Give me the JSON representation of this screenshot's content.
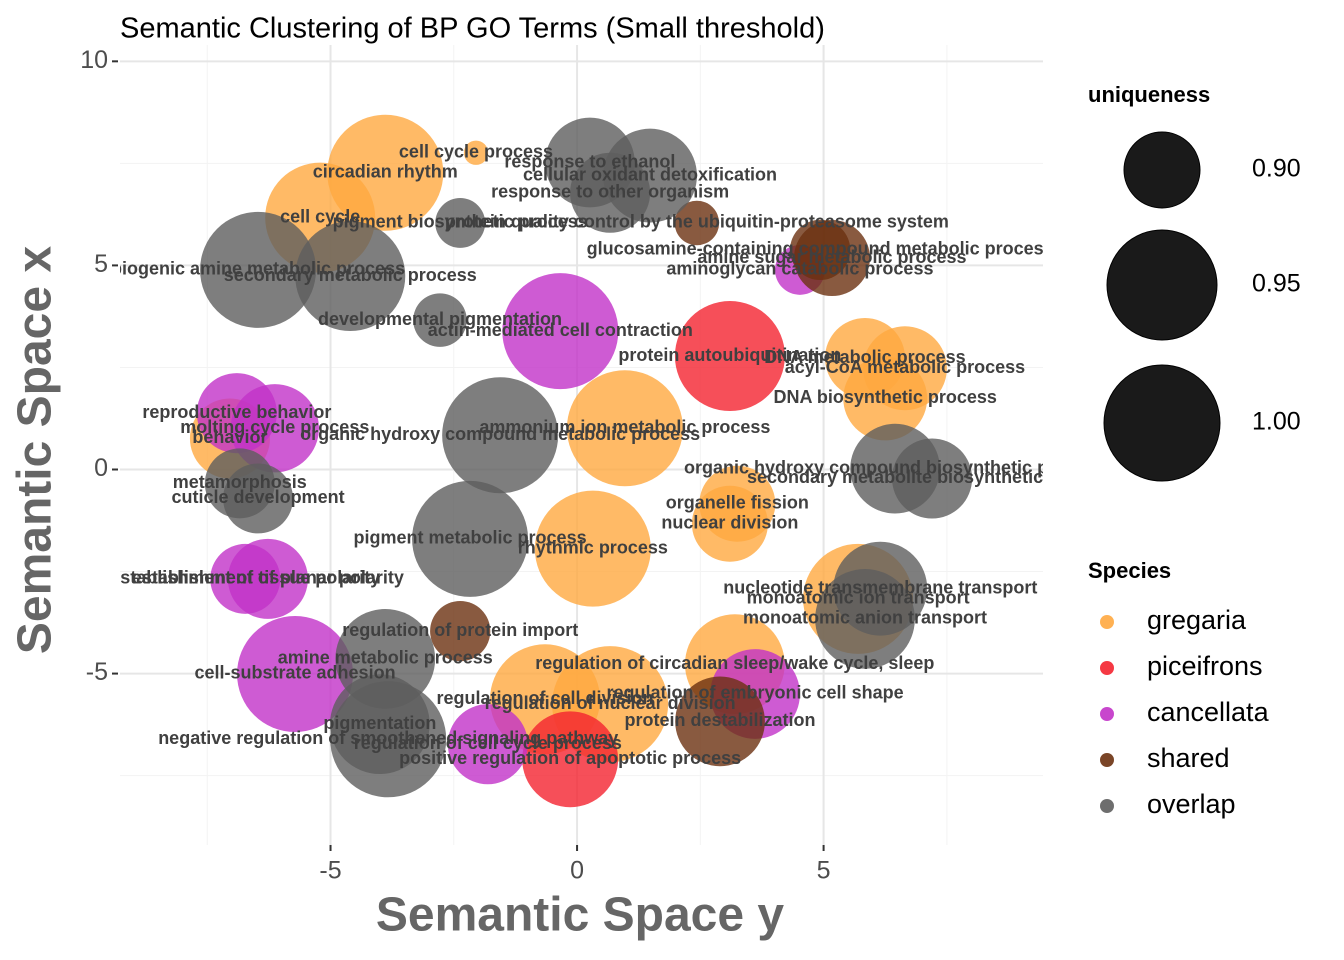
{
  "chart_data": {
    "type": "scatter",
    "title": "Semantic Clustering of BP GO Terms (Small threshold)",
    "x_label": "Semantic Space y",
    "y_label": "Semantic Space x",
    "xlim": [
      -9.27,
      9.45
    ],
    "ylim": [
      -9.2,
      10.4
    ],
    "xticks": [
      -5,
      0,
      5
    ],
    "yticks": [
      -5,
      0,
      5,
      10
    ],
    "grid": true,
    "size_title": "uniqueness",
    "size_ticks": [
      {
        "value": 0.9,
        "label": "0.90"
      },
      {
        "value": 0.95,
        "label": "0.95"
      },
      {
        "value": 1.0,
        "label": "1.00"
      }
    ],
    "color_title": "Species",
    "series": [
      {
        "name": "gregaria",
        "color": "#FFA940",
        "labels": [
          "cell cycle process",
          "circadian rhythm",
          "cell cycle",
          "DNA metabolic process",
          "acyl-CoA metabolic process",
          "DNA biosynthetic process",
          "ammonium ion metabolic process",
          "behavior",
          "organelle fission",
          "nuclear division",
          "rhythmic process",
          "monoatomic ion transport",
          "regulation of circadian sleep/wake cycle, sleep",
          "regulation of cell division",
          "regulation of nuclear division"
        ],
        "x": [
          -2.05,
          -3.89,
          -5.21,
          5.84,
          6.65,
          6.25,
          0.97,
          -7.04,
          3.25,
          3.1,
          0.32,
          5.7,
          3.2,
          -0.65,
          0.67
        ],
        "values": [
          7.76,
          7.27,
          6.17,
          2.73,
          2.48,
          1.74,
          1.01,
          0.76,
          -0.84,
          -1.33,
          -1.94,
          -3.17,
          -4.77,
          -5.63,
          -5.75
        ],
        "sizes": [
          0.859,
          1.0,
          0.95,
          0.905,
          0.91,
          0.91,
          1.0,
          0.905,
          0.9,
          0.9,
          1.0,
          0.95,
          0.933,
          0.95,
          1.0
        ]
      },
      {
        "name": "piceifrons",
        "color": "#F4232F",
        "labels": [
          "protein autoubiquitination",
          "positive regulation of apoptotic process"
        ],
        "x": [
          3.1,
          -0.14
        ],
        "values": [
          2.78,
          -7.1
        ],
        "sizes": [
          0.95,
          0.927
        ]
      },
      {
        "name": "cancellata",
        "color": "#C232C8",
        "labels": [
          "aminoglycan catabolic process",
          "actin-mediated cell contraction",
          "reproductive behavior",
          "molting cycle process",
          "establishment of planar polarity",
          "establishment of tissue polarity",
          "cell-substrate adhesion",
          "regulation of embryonic cell shape",
          "regulation of cell cycle process"
        ],
        "x": [
          4.52,
          -0.34,
          -6.9,
          -6.13,
          -6.27,
          -6.73,
          -5.72,
          3.61,
          -1.81
        ],
        "values": [
          4.89,
          3.39,
          1.38,
          1.01,
          -2.68,
          -2.68,
          -5.01,
          -5.5,
          -6.73
        ],
        "sizes": [
          0.874,
          1.0,
          0.905,
          0.916,
          0.905,
          0.893,
          1.0,
          0.918,
          0.905
        ]
      },
      {
        "name": "shared",
        "color": "#6B3110",
        "labels": [
          "protein quality control by the ubiquitin-proteasome system",
          "amine sugar metabolic process",
          "glucosamine-containing compound metabolic process",
          "regulation of protein import",
          "protein destabilization"
        ],
        "x": [
          2.43,
          5.17,
          4.93,
          -2.37,
          2.9
        ],
        "values": [
          6.04,
          5.18,
          5.38,
          -3.96,
          -6.17
        ],
        "sizes": [
          0.87,
          0.9,
          0.883,
          0.883,
          0.918
        ]
      },
      {
        "name": "overlap",
        "color": "#5E5E5E",
        "labels": [
          "response to ethanol",
          "cellular oxidant detoxification",
          "response to other organism",
          "pigment biosynthetic process",
          "biogenic amine metabolic process",
          "secondary metabolic process",
          "developmental pigmentation",
          "organic hydroxy compound metabolic process",
          "metamorphosis",
          "cuticle development",
          "secondary metabolite biosynthetic process",
          "organic hydroxy compound biosynthetic process",
          "pigment metabolic process",
          "nucleotide transmembrane transport",
          "monoatomic anion transport",
          "amine metabolic process",
          "pigmentation",
          "negative regulation of smoothened signaling pathway"
        ],
        "x": [
          0.26,
          1.48,
          0.67,
          -2.37,
          -6.47,
          -4.6,
          -2.78,
          -1.56,
          -6.84,
          -6.47,
          7.2,
          6.45,
          -2.17,
          6.15,
          5.84,
          -3.89,
          -4.0,
          -3.83
        ],
        "values": [
          7.52,
          7.2,
          6.78,
          6.04,
          4.89,
          4.74,
          3.66,
          0.84,
          -0.34,
          -0.71,
          -0.22,
          0.02,
          -1.7,
          -2.92,
          -3.66,
          -4.64,
          -6.24,
          -6.61
        ],
        "sizes": [
          0.918,
          0.924,
          0.905,
          0.874,
          1.0,
          0.95,
          0.877,
          1.0,
          0.893,
          0.893,
          0.905,
          0.918,
          1.0,
          0.924,
          0.933,
          0.933,
          0.933,
          1.0
        ]
      }
    ]
  }
}
